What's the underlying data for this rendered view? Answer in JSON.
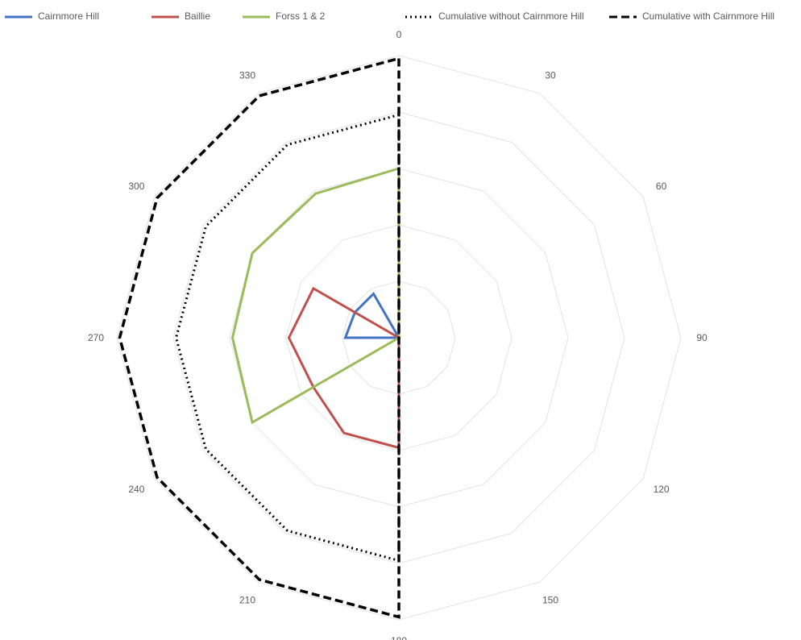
{
  "chart_data": {
    "type": "radar",
    "title": "",
    "angle_labels": [
      "0",
      "30",
      "60",
      "90",
      "120",
      "150",
      "180",
      "210",
      "240",
      "270",
      "300",
      "330"
    ],
    "radial_max": 5,
    "radial_gridlines": 5,
    "radial_tick_labels_visible": false,
    "grid": true,
    "legend_position": "top",
    "series": [
      {
        "name": "Cairnmore Hill",
        "color": "#4472c4",
        "style": "solid",
        "values": [
          0,
          0,
          0,
          0,
          0,
          0,
          0,
          0,
          0,
          0.95,
          0.9,
          0.9
        ]
      },
      {
        "name": "Baillie",
        "color": "#c0504d",
        "style": "solid",
        "values": [
          0,
          0,
          0,
          0,
          0,
          0,
          1.95,
          1.95,
          1.75,
          1.95,
          1.75,
          0
        ]
      },
      {
        "name": "Forss 1 & 2",
        "color": "#9bbb59",
        "style": "solid",
        "values": [
          3.0,
          0,
          0,
          0,
          0,
          0,
          0,
          0,
          3.0,
          2.95,
          3.0,
          2.95
        ]
      },
      {
        "name": "Cumulative without Cairnmore Hill",
        "color": "#000000",
        "style": "dotted",
        "values": [
          3.95,
          0,
          0,
          0,
          0,
          0,
          3.95,
          3.95,
          3.95,
          3.95,
          3.95,
          3.95
        ]
      },
      {
        "name": "Cumulative with Cairnmore Hill",
        "color": "#000000",
        "style": "dashed",
        "values": [
          4.95,
          0,
          0,
          0,
          0,
          0,
          4.95,
          4.95,
          4.95,
          4.95,
          4.95,
          4.95
        ]
      }
    ]
  }
}
